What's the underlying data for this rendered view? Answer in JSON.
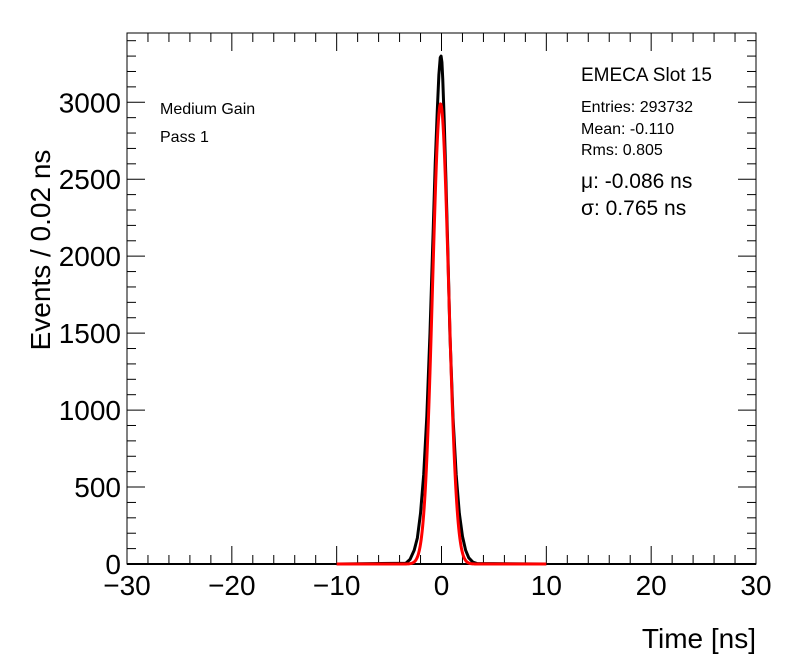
{
  "chart_data": {
    "type": "line",
    "xlabel": "Time [ns]",
    "ylabel": "Events / 0.02 ns",
    "xlim": [
      -30,
      30
    ],
    "ylim": [
      0,
      3450
    ],
    "x_ticks": [
      -30,
      -20,
      -10,
      0,
      10,
      20,
      30
    ],
    "x_tick_labels": [
      "−30",
      "−20",
      "−10",
      "0",
      "10",
      "20",
      "30"
    ],
    "y_ticks": [
      0,
      500,
      1000,
      1500,
      2000,
      2500,
      3000
    ],
    "y_tick_labels": [
      "0",
      "500",
      "1000",
      "1500",
      "2000",
      "2500",
      "3000"
    ],
    "grid": false,
    "series": [
      {
        "color": "#000000",
        "x": [
          -10,
          -3.4,
          -3.0,
          -2.6,
          -2.3,
          -2.0,
          -1.7,
          -1.4,
          -1.1,
          -0.8,
          -0.6,
          -0.4,
          -0.25,
          -0.12,
          -0.04,
          0.04,
          0.12,
          0.25,
          0.4,
          0.6,
          0.8,
          1.1,
          1.4,
          1.7,
          2.0,
          2.3,
          2.6,
          3.0,
          3.4,
          10
        ],
        "y": [
          0,
          5,
          30,
          90,
          170,
          330,
          580,
          960,
          1500,
          2150,
          2600,
          2950,
          3180,
          3290,
          3300,
          3260,
          3150,
          2900,
          2550,
          2050,
          1500,
          950,
          580,
          330,
          180,
          90,
          40,
          12,
          3,
          0
        ]
      },
      {
        "color": "#ff0000",
        "model": "gaussian",
        "amplitude": 2990,
        "mu": -0.086,
        "sigma": 0.765,
        "x_range": [
          -10,
          10
        ]
      }
    ],
    "annotations": {
      "gain": "Medium Gain",
      "pass": "Pass 1",
      "slot": "EMECA Slot 15",
      "entries": "Entries: 293732",
      "mean": "Mean: -0.110",
      "rms": "Rms: 0.805",
      "mu_text": "μ: -0.086 ns",
      "sigma_text": "σ: 0.765 ns"
    }
  }
}
